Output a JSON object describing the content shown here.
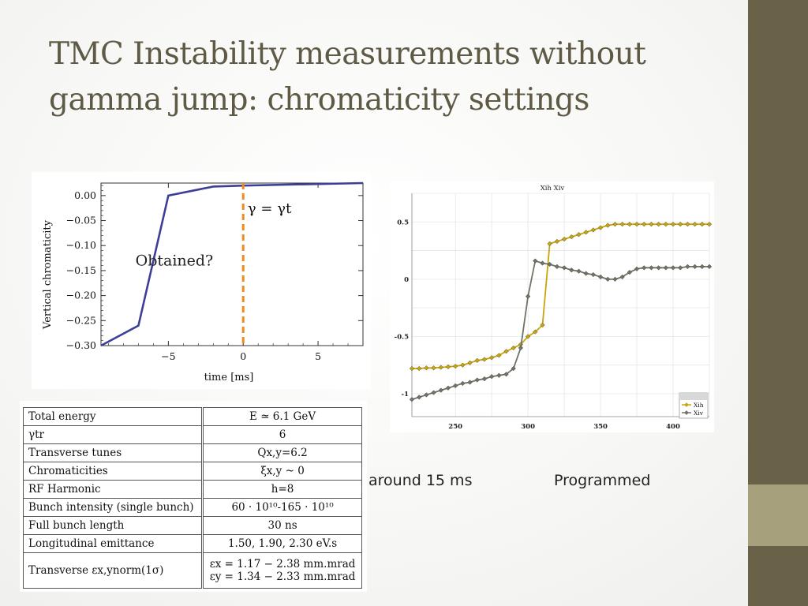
{
  "slide": {
    "title": "TMC Instability measurements without gamma jump: chromaticity settings",
    "caption_left": "around 15 ms",
    "caption_right": "Programmed",
    "colors": {
      "sidebar": "#6a6248",
      "sidebar_accent": "#a7a07c",
      "title": "#5f5a45"
    }
  },
  "chart_data": [
    {
      "type": "line",
      "xlabel": "time [ms]",
      "ylabel": "Vertical chromaticity",
      "xlim": [
        -9.5,
        8
      ],
      "ylim": [
        -0.3,
        0.025
      ],
      "xticks": [
        -5,
        0,
        5
      ],
      "xtick_labels": [
        "−5",
        "0",
        "5"
      ],
      "yticks": [
        0.0,
        -0.05,
        -0.1,
        -0.15,
        -0.2,
        -0.25,
        -0.3
      ],
      "ytick_labels": [
        "0.00",
        "−0.05",
        "−0.10",
        "−0.15",
        "−0.20",
        "−0.25",
        "−0.30"
      ],
      "series": [
        {
          "color": "#3c3f96",
          "x": [
            -9.5,
            -7,
            -5,
            -2,
            0,
            8
          ],
          "y": [
            -0.3,
            -0.26,
            0.0,
            0.018,
            0.02,
            0.025
          ]
        }
      ],
      "vline": {
        "x": 0,
        "color": "#ef8a1e",
        "style": "dashed"
      },
      "annotations": [
        {
          "text": "γ = γt",
          "x": 0.3,
          "y": -0.035
        },
        {
          "text": "Obtained?",
          "x": -7.2,
          "y": -0.14
        }
      ]
    },
    {
      "type": "line",
      "title": "Xih Xiv",
      "xlim": [
        220,
        425
      ],
      "ylim": [
        -1.2,
        0.75
      ],
      "xticks": [
        250,
        300,
        350,
        400
      ],
      "xtick_labels": [
        "250",
        "300",
        "350",
        "400"
      ],
      "yticks": [
        0.5,
        0,
        -0.5,
        -1
      ],
      "ytick_labels": [
        "0.5",
        "0",
        "-0.5",
        "-1"
      ],
      "grid": true,
      "legend": "bottom-right",
      "series": [
        {
          "name": "Xih",
          "color": "#c8a50a",
          "x": [
            220,
            225,
            230,
            235,
            240,
            245,
            250,
            255,
            260,
            265,
            270,
            275,
            280,
            285,
            290,
            295,
            300,
            305,
            310,
            315,
            320,
            325,
            330,
            335,
            340,
            345,
            350,
            355,
            360,
            365,
            370,
            375,
            380,
            385,
            390,
            395,
            400,
            405,
            410,
            415,
            420,
            425
          ],
          "y": [
            -0.78,
            -0.78,
            -0.775,
            -0.775,
            -0.77,
            -0.765,
            -0.76,
            -0.75,
            -0.73,
            -0.71,
            -0.7,
            -0.685,
            -0.665,
            -0.63,
            -0.6,
            -0.57,
            -0.5,
            -0.46,
            -0.4,
            0.31,
            0.33,
            0.35,
            0.37,
            0.39,
            0.41,
            0.43,
            0.45,
            0.47,
            0.48,
            0.48,
            0.48,
            0.48,
            0.48,
            0.48,
            0.48,
            0.48,
            0.48,
            0.48,
            0.48,
            0.48,
            0.48,
            0.48
          ]
        },
        {
          "name": "Xiv",
          "color": "#6e7466",
          "x": [
            220,
            225,
            230,
            235,
            240,
            245,
            250,
            255,
            260,
            265,
            270,
            275,
            280,
            285,
            290,
            295,
            300,
            305,
            310,
            315,
            320,
            325,
            330,
            335,
            340,
            345,
            350,
            355,
            360,
            365,
            370,
            375,
            380,
            385,
            390,
            395,
            400,
            405,
            410,
            415,
            420,
            425
          ],
          "y": [
            -1.05,
            -1.03,
            -1.01,
            -0.99,
            -0.97,
            -0.95,
            -0.93,
            -0.91,
            -0.9,
            -0.88,
            -0.87,
            -0.85,
            -0.84,
            -0.83,
            -0.78,
            -0.6,
            -0.15,
            0.16,
            0.14,
            0.13,
            0.11,
            0.1,
            0.08,
            0.07,
            0.05,
            0.04,
            0.02,
            0.0,
            0.0,
            0.02,
            0.06,
            0.09,
            0.1,
            0.1,
            0.1,
            0.1,
            0.1,
            0.1,
            0.11,
            0.11,
            0.11,
            0.11
          ]
        }
      ]
    }
  ],
  "params_table": [
    {
      "label": "Total energy",
      "value": "E ≃ 6.1 GeV"
    },
    {
      "label": "γtr",
      "value": "6"
    },
    {
      "label": "Transverse tunes",
      "value": "Qx,y=6.2"
    },
    {
      "label": "Chromaticities",
      "value": "ξx,y ~ 0"
    },
    {
      "label": "RF Harmonic",
      "value": "h=8"
    },
    {
      "label": "Bunch intensity (single bunch)",
      "value": "60 · 10¹⁰-165 · 10¹⁰"
    },
    {
      "label": "Full bunch length",
      "value": "30 ns"
    },
    {
      "label": "Longitudinal emittance",
      "value": "1.50, 1.90, 2.30 eV.s"
    },
    {
      "label": "Transverse εx,ynorm(1σ)",
      "value": "εx = 1.17 − 2.38 mm.mrad",
      "value2": "εy = 1.34 − 2.33 mm.mrad"
    }
  ]
}
